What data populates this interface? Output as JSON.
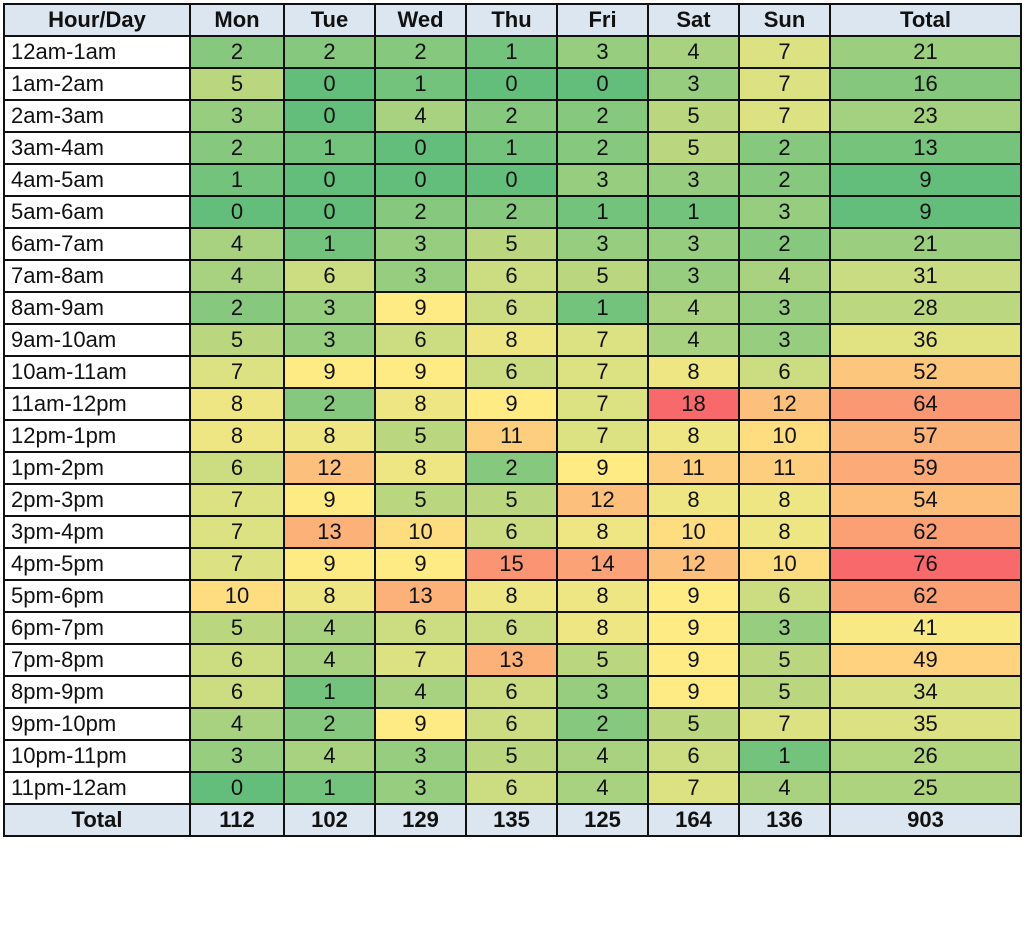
{
  "chart_data": {
    "type": "heatmap",
    "corner_label": "Hour/Day",
    "columns": [
      "Mon",
      "Tue",
      "Wed",
      "Thu",
      "Fri",
      "Sat",
      "Sun"
    ],
    "total_label": "Total",
    "rows": [
      {
        "label": "12am-1am",
        "values": [
          2,
          2,
          2,
          1,
          3,
          4,
          7
        ],
        "total": 21
      },
      {
        "label": "1am-2am",
        "values": [
          5,
          0,
          1,
          0,
          0,
          3,
          7
        ],
        "total": 16
      },
      {
        "label": "2am-3am",
        "values": [
          3,
          0,
          4,
          2,
          2,
          5,
          7
        ],
        "total": 23
      },
      {
        "label": "3am-4am",
        "values": [
          2,
          1,
          0,
          1,
          2,
          5,
          2
        ],
        "total": 13
      },
      {
        "label": "4am-5am",
        "values": [
          1,
          0,
          0,
          0,
          3,
          3,
          2
        ],
        "total": 9
      },
      {
        "label": "5am-6am",
        "values": [
          0,
          0,
          2,
          2,
          1,
          1,
          3
        ],
        "total": 9
      },
      {
        "label": "6am-7am",
        "values": [
          4,
          1,
          3,
          5,
          3,
          3,
          2
        ],
        "total": 21
      },
      {
        "label": "7am-8am",
        "values": [
          4,
          6,
          3,
          6,
          5,
          3,
          4
        ],
        "total": 31
      },
      {
        "label": "8am-9am",
        "values": [
          2,
          3,
          9,
          6,
          1,
          4,
          3
        ],
        "total": 28
      },
      {
        "label": "9am-10am",
        "values": [
          5,
          3,
          6,
          8,
          7,
          4,
          3
        ],
        "total": 36
      },
      {
        "label": "10am-11am",
        "values": [
          7,
          9,
          9,
          6,
          7,
          8,
          6
        ],
        "total": 52
      },
      {
        "label": "11am-12pm",
        "values": [
          8,
          2,
          8,
          9,
          7,
          18,
          12
        ],
        "total": 64
      },
      {
        "label": "12pm-1pm",
        "values": [
          8,
          8,
          5,
          11,
          7,
          8,
          10
        ],
        "total": 57
      },
      {
        "label": "1pm-2pm",
        "values": [
          6,
          12,
          8,
          2,
          9,
          11,
          11
        ],
        "total": 59
      },
      {
        "label": "2pm-3pm",
        "values": [
          7,
          9,
          5,
          5,
          12,
          8,
          8
        ],
        "total": 54
      },
      {
        "label": "3pm-4pm",
        "values": [
          7,
          13,
          10,
          6,
          8,
          10,
          8
        ],
        "total": 62
      },
      {
        "label": "4pm-5pm",
        "values": [
          7,
          9,
          9,
          15,
          14,
          12,
          10
        ],
        "total": 76
      },
      {
        "label": "5pm-6pm",
        "values": [
          10,
          8,
          13,
          8,
          8,
          9,
          6
        ],
        "total": 62
      },
      {
        "label": "6pm-7pm",
        "values": [
          5,
          4,
          6,
          6,
          8,
          9,
          3
        ],
        "total": 41
      },
      {
        "label": "7pm-8pm",
        "values": [
          6,
          4,
          7,
          13,
          5,
          9,
          5
        ],
        "total": 49
      },
      {
        "label": "8pm-9pm",
        "values": [
          6,
          1,
          4,
          6,
          3,
          9,
          5
        ],
        "total": 34
      },
      {
        "label": "9pm-10pm",
        "values": [
          4,
          2,
          9,
          6,
          2,
          5,
          7
        ],
        "total": 35
      },
      {
        "label": "10pm-11pm",
        "values": [
          3,
          4,
          3,
          5,
          4,
          6,
          1
        ],
        "total": 26
      },
      {
        "label": "11pm-12am",
        "values": [
          0,
          1,
          3,
          6,
          4,
          7,
          4
        ],
        "total": 25
      }
    ],
    "column_totals": [
      112,
      102,
      129,
      135,
      125,
      164,
      136
    ],
    "grand_total": 903,
    "color_scale": {
      "low": "#63be7b",
      "mid": "#ffeb84",
      "high": "#f8696b"
    },
    "header_fill": "#dce6f1"
  }
}
